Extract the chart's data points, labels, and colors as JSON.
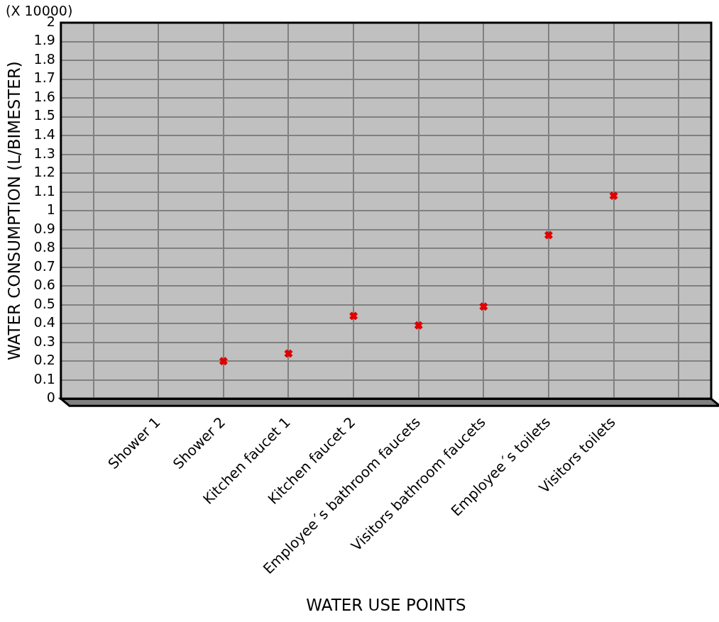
{
  "chart_data": {
    "type": "scatter",
    "xlabel": "WATER USE POINTS",
    "ylabel": "WATER CONSUMPTION (L/BIMESTER)",
    "annotations": [
      "(X 10000)"
    ],
    "categories": [
      null,
      "Shower 1",
      "Shower 2",
      "Kitchen faucet 1",
      "Kitchen faucet 2",
      "Employee´s bathroom faucets",
      "Visitors bathroom faucets",
      "Employee´s toilets",
      "Visitors toilets",
      null
    ],
    "series": [
      {
        "color": "#e00000",
        "values": [
          null,
          null,
          0.2,
          0.24,
          0.44,
          0.39,
          0.49,
          0.87,
          1.08,
          null
        ]
      }
    ],
    "ylim": [
      0,
      2
    ],
    "yticks": [
      0,
      0.1,
      0.2,
      0.3,
      0.4,
      0.5,
      0.6,
      0.7,
      0.8,
      0.9,
      1,
      1.1,
      1.2,
      1.3,
      1.4,
      1.5,
      1.6,
      1.7,
      1.8,
      1.9,
      2
    ],
    "grid": true,
    "legend": false,
    "marker": "cross"
  }
}
